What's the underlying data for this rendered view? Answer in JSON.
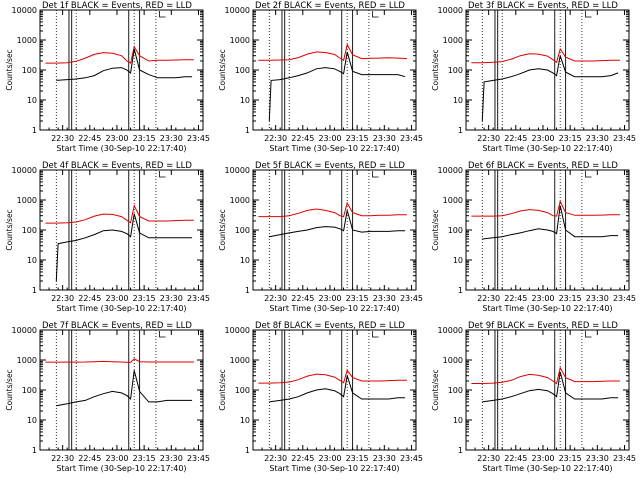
{
  "figure": {
    "xtick_labels": [
      "22:30",
      "22:45",
      "23:00",
      "23:15",
      "23:30",
      "23:45"
    ],
    "xlabel": "Start Time (30-Sep-10 22:17:40)",
    "ylabel": "Counts/sec",
    "ytick_labels": [
      "1",
      "10",
      "100",
      "1000",
      "10000"
    ],
    "colors": {
      "events": "#000000",
      "lld": "#e00000",
      "axes": "#000000"
    }
  },
  "chart_data": [
    {
      "type": "line",
      "title": "Det 1f BLACK = Events, RED = LLD",
      "xlabel": "Start Time (30-Sep-10 22:17:40)",
      "ylabel": "Counts/sec",
      "xlim": [
        0,
        90
      ],
      "ylim": [
        1,
        10000
      ],
      "yscale": "log",
      "series": [
        {
          "name": "Events",
          "color": "#000000",
          "x": [
            9,
            15,
            20,
            25,
            30,
            35,
            40,
            45,
            48,
            50,
            52,
            55,
            60,
            65,
            70,
            75,
            80,
            84
          ],
          "y": [
            45,
            48,
            50,
            55,
            65,
            95,
            115,
            120,
            100,
            80,
            500,
            100,
            70,
            55,
            55,
            55,
            60,
            60
          ]
        },
        {
          "name": "LLD",
          "color": "#e00000",
          "x": [
            3,
            9,
            15,
            20,
            25,
            30,
            35,
            40,
            45,
            48,
            50,
            52,
            55,
            60,
            65,
            70,
            75,
            80,
            85
          ],
          "y": [
            170,
            170,
            175,
            195,
            250,
            330,
            380,
            360,
            300,
            200,
            170,
            600,
            300,
            200,
            210,
            210,
            215,
            220,
            220
          ]
        }
      ]
    },
    {
      "type": "line",
      "title": "Det 2f BLACK = Events, RED = LLD",
      "xlabel": "Start Time (30-Sep-10 22:17:40)",
      "ylabel": "Counts/sec",
      "xlim": [
        0,
        90
      ],
      "ylim": [
        1,
        10000
      ],
      "yscale": "log",
      "series": [
        {
          "name": "Events",
          "color": "#000000",
          "x": [
            9,
            10,
            15,
            20,
            25,
            30,
            35,
            40,
            45,
            48,
            50,
            52,
            55,
            60,
            65,
            70,
            75,
            80,
            84
          ],
          "y": [
            2,
            45,
            48,
            55,
            65,
            80,
            110,
            120,
            110,
            90,
            75,
            400,
            90,
            70,
            70,
            70,
            70,
            70,
            60
          ]
        },
        {
          "name": "LLD",
          "color": "#e00000",
          "x": [
            3,
            9,
            15,
            20,
            25,
            30,
            35,
            40,
            45,
            48,
            50,
            52,
            55,
            60,
            65,
            70,
            75,
            80,
            85
          ],
          "y": [
            210,
            210,
            215,
            220,
            260,
            340,
            400,
            380,
            330,
            250,
            210,
            700,
            320,
            240,
            245,
            250,
            255,
            250,
            240
          ]
        }
      ]
    },
    {
      "type": "line",
      "title": "Det 3f BLACK = Events, RED = LLD",
      "xlabel": "Start Time (30-Sep-10 22:17:40)",
      "ylabel": "Counts/sec",
      "xlim": [
        0,
        90
      ],
      "ylim": [
        1,
        10000
      ],
      "yscale": "log",
      "series": [
        {
          "name": "Events",
          "color": "#000000",
          "x": [
            9,
            10,
            15,
            20,
            25,
            30,
            35,
            40,
            45,
            48,
            50,
            52,
            55,
            60,
            65,
            70,
            75,
            80,
            84
          ],
          "y": [
            2,
            40,
            45,
            50,
            60,
            75,
            100,
            110,
            100,
            80,
            65,
            300,
            85,
            60,
            60,
            60,
            60,
            65,
            80
          ]
        },
        {
          "name": "LLD",
          "color": "#e00000",
          "x": [
            3,
            9,
            15,
            20,
            25,
            30,
            35,
            40,
            45,
            48,
            50,
            52,
            55,
            60,
            65,
            70,
            75,
            80,
            85
          ],
          "y": [
            175,
            175,
            180,
            190,
            230,
            300,
            350,
            340,
            290,
            220,
            180,
            500,
            270,
            200,
            200,
            200,
            205,
            210,
            210
          ]
        }
      ]
    },
    {
      "type": "line",
      "title": "Det 4f BLACK = Events, RED = LLD",
      "xlabel": "Start Time (30-Sep-10 22:17:40)",
      "ylabel": "Counts/sec",
      "xlim": [
        0,
        90
      ],
      "ylim": [
        1,
        10000
      ],
      "yscale": "log",
      "series": [
        {
          "name": "Events",
          "color": "#000000",
          "x": [
            9,
            10,
            15,
            20,
            25,
            30,
            35,
            40,
            45,
            48,
            50,
            52,
            55,
            60,
            65,
            70,
            75,
            80,
            84
          ],
          "y": [
            2,
            35,
            40,
            45,
            55,
            70,
            95,
            100,
            90,
            75,
            60,
            350,
            80,
            55,
            55,
            55,
            55,
            55,
            55
          ]
        },
        {
          "name": "LLD",
          "color": "#e00000",
          "x": [
            3,
            9,
            15,
            20,
            25,
            30,
            35,
            40,
            45,
            48,
            50,
            52,
            55,
            60,
            65,
            70,
            75,
            80,
            85
          ],
          "y": [
            170,
            170,
            175,
            185,
            220,
            290,
            340,
            330,
            280,
            210,
            175,
            650,
            280,
            200,
            200,
            200,
            205,
            210,
            210
          ]
        }
      ]
    },
    {
      "type": "line",
      "title": "Det 5f BLACK = Events, RED = LLD",
      "xlabel": "Start Time (30-Sep-10 22:17:40)",
      "ylabel": "Counts/sec",
      "xlim": [
        0,
        90
      ],
      "ylim": [
        1,
        10000
      ],
      "yscale": "log",
      "series": [
        {
          "name": "Events",
          "color": "#000000",
          "x": [
            9,
            15,
            20,
            25,
            30,
            35,
            40,
            45,
            48,
            50,
            52,
            55,
            60,
            65,
            70,
            75,
            80,
            84
          ],
          "y": [
            60,
            70,
            80,
            90,
            100,
            120,
            130,
            125,
            110,
            95,
            450,
            100,
            85,
            90,
            90,
            90,
            95,
            95
          ]
        },
        {
          "name": "LLD",
          "color": "#e00000",
          "x": [
            3,
            9,
            15,
            20,
            25,
            30,
            35,
            40,
            45,
            48,
            50,
            52,
            55,
            60,
            65,
            70,
            75,
            80,
            85
          ],
          "y": [
            280,
            280,
            280,
            300,
            360,
            450,
            500,
            450,
            380,
            300,
            280,
            800,
            380,
            300,
            300,
            310,
            310,
            320,
            320
          ]
        }
      ]
    },
    {
      "type": "line",
      "title": "Det 6f BLACK = Events, RED = LLD",
      "xlabel": "Start Time (30-Sep-10 22:17:40)",
      "ylabel": "Counts/sec",
      "xlim": [
        0,
        90
      ],
      "ylim": [
        1,
        10000
      ],
      "yscale": "log",
      "series": [
        {
          "name": "Events",
          "color": "#000000",
          "x": [
            9,
            15,
            20,
            25,
            30,
            35,
            40,
            45,
            48,
            50,
            52,
            55,
            60,
            65,
            70,
            75,
            80,
            84
          ],
          "y": [
            50,
            55,
            60,
            70,
            80,
            95,
            110,
            100,
            90,
            75,
            650,
            100,
            60,
            60,
            60,
            60,
            65,
            65
          ]
        },
        {
          "name": "LLD",
          "color": "#e00000",
          "x": [
            3,
            9,
            15,
            20,
            25,
            30,
            35,
            40,
            45,
            48,
            50,
            52,
            55,
            60,
            65,
            70,
            75,
            80,
            85
          ],
          "y": [
            290,
            290,
            290,
            300,
            350,
            430,
            480,
            450,
            380,
            300,
            290,
            900,
            380,
            310,
            310,
            310,
            315,
            320,
            320
          ]
        }
      ]
    },
    {
      "type": "line",
      "title": "Det 7f BLACK = Events, RED = LLD",
      "xlabel": "Start Time (30-Sep-10 22:17:40)",
      "ylabel": "Counts/sec",
      "xlim": [
        0,
        90
      ],
      "ylim": [
        1,
        10000
      ],
      "yscale": "log",
      "series": [
        {
          "name": "Events",
          "color": "#000000",
          "x": [
            9,
            15,
            20,
            25,
            30,
            35,
            40,
            45,
            48,
            50,
            52,
            55,
            60,
            65,
            70,
            75,
            80,
            84
          ],
          "y": [
            30,
            35,
            40,
            45,
            60,
            75,
            90,
            80,
            65,
            50,
            450,
            90,
            40,
            40,
            45,
            45,
            45,
            45
          ]
        },
        {
          "name": "LLD",
          "color": "#e00000",
          "x": [
            3,
            9,
            15,
            20,
            25,
            30,
            35,
            40,
            45,
            48,
            50,
            52,
            55,
            60,
            65,
            70,
            75,
            80,
            85
          ],
          "y": [
            850,
            850,
            850,
            850,
            860,
            880,
            900,
            880,
            860,
            840,
            830,
            1100,
            880,
            860,
            860,
            860,
            860,
            860,
            860
          ]
        }
      ]
    },
    {
      "type": "line",
      "title": "Det 8f BLACK = Events, RED = LLD",
      "xlabel": "Start Time (30-Sep-10 22:17:40)",
      "ylabel": "Counts/sec",
      "xlim": [
        0,
        90
      ],
      "ylim": [
        1,
        10000
      ],
      "yscale": "log",
      "series": [
        {
          "name": "Events",
          "color": "#000000",
          "x": [
            9,
            15,
            20,
            25,
            30,
            35,
            40,
            45,
            48,
            50,
            52,
            55,
            60,
            65,
            70,
            75,
            80,
            84
          ],
          "y": [
            40,
            45,
            50,
            60,
            80,
            100,
            110,
            95,
            75,
            60,
            300,
            80,
            50,
            50,
            50,
            50,
            55,
            55
          ]
        },
        {
          "name": "LLD",
          "color": "#e00000",
          "x": [
            3,
            9,
            15,
            20,
            25,
            30,
            35,
            40,
            45,
            48,
            50,
            52,
            55,
            60,
            65,
            70,
            75,
            80,
            85
          ],
          "y": [
            170,
            170,
            175,
            185,
            220,
            290,
            340,
            320,
            270,
            210,
            175,
            450,
            260,
            200,
            200,
            200,
            205,
            210,
            210
          ]
        }
      ]
    },
    {
      "type": "line",
      "title": "Det 9f BLACK = Events, RED = LLD",
      "xlabel": "Start Time (30-Sep-10 22:17:40)",
      "ylabel": "Counts/sec",
      "xlim": [
        0,
        90
      ],
      "ylim": [
        1,
        10000
      ],
      "yscale": "log",
      "series": [
        {
          "name": "Events",
          "color": "#000000",
          "x": [
            9,
            15,
            20,
            25,
            30,
            35,
            40,
            45,
            48,
            50,
            52,
            55,
            60,
            65,
            70,
            75,
            80,
            84
          ],
          "y": [
            40,
            45,
            50,
            60,
            75,
            95,
            105,
            95,
            75,
            60,
            400,
            80,
            50,
            50,
            50,
            50,
            55,
            55
          ]
        },
        {
          "name": "LLD",
          "color": "#e00000",
          "x": [
            3,
            9,
            15,
            20,
            25,
            30,
            35,
            40,
            45,
            48,
            50,
            52,
            55,
            60,
            65,
            70,
            75,
            80,
            85
          ],
          "y": [
            165,
            165,
            170,
            180,
            210,
            280,
            330,
            310,
            260,
            200,
            165,
            550,
            260,
            190,
            190,
            190,
            195,
            200,
            200
          ]
        }
      ]
    }
  ]
}
